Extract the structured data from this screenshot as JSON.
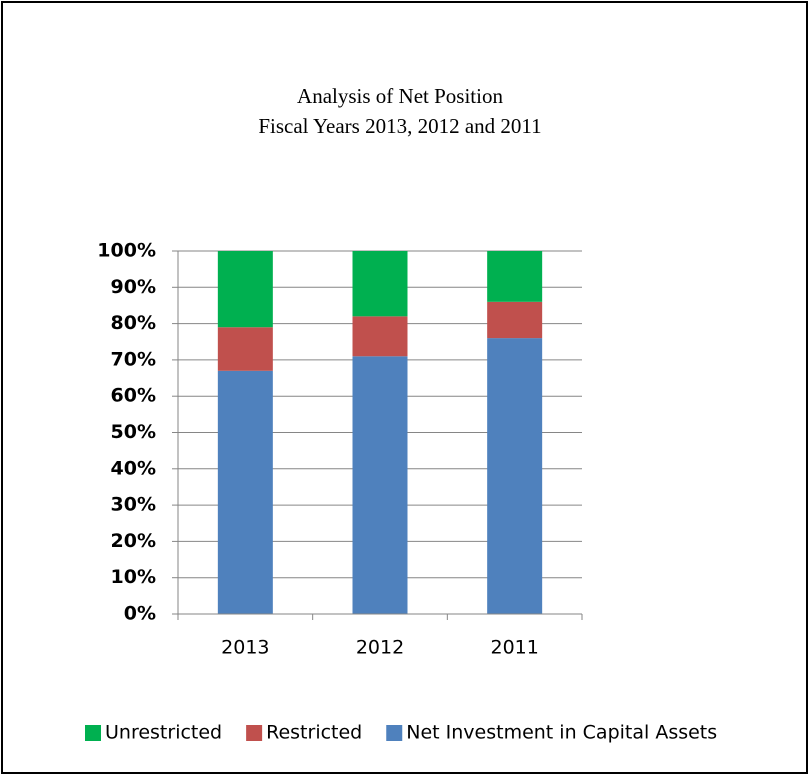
{
  "chart_data": {
    "type": "stacked_bar",
    "title": "Analysis of Net Position",
    "subtitle": "Fiscal Years 2013, 2012 and 2011",
    "categories": [
      "2013",
      "2012",
      "2011"
    ],
    "series": [
      {
        "name": "Net Investment in Capital Assets",
        "color": "#4f81bd",
        "values": [
          67,
          71,
          76
        ]
      },
      {
        "name": "Restricted",
        "color": "#c0504d",
        "values": [
          12,
          11,
          10
        ]
      },
      {
        "name": "Unrestricted",
        "color": "#00b050",
        "values": [
          21,
          18,
          14
        ]
      }
    ],
    "ylim": [
      0,
      100
    ],
    "yticks": [
      {
        "value": 0,
        "label": "0%"
      },
      {
        "value": 10,
        "label": "10%"
      },
      {
        "value": 20,
        "label": "20%"
      },
      {
        "value": 30,
        "label": "30%"
      },
      {
        "value": 40,
        "label": "40%"
      },
      {
        "value": 50,
        "label": "50%"
      },
      {
        "value": 60,
        "label": "60%"
      },
      {
        "value": 70,
        "label": "70%"
      },
      {
        "value": 80,
        "label": "80%"
      },
      {
        "value": 90,
        "label": "90%"
      },
      {
        "value": 100,
        "label": "100%"
      }
    ],
    "grid": true,
    "legend": "bottom"
  }
}
